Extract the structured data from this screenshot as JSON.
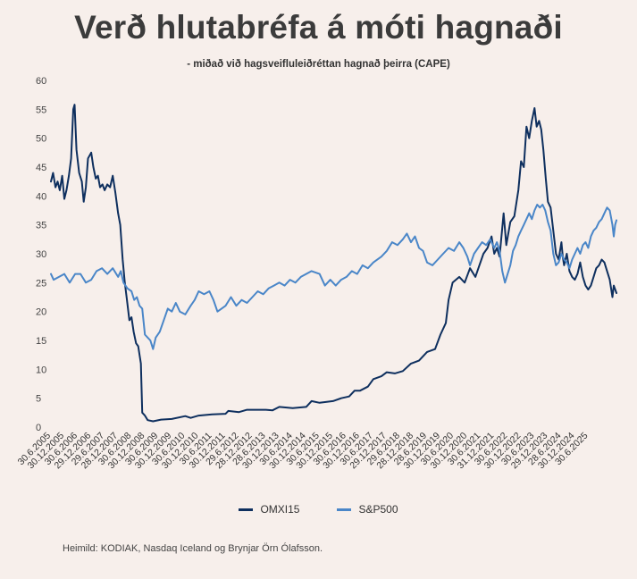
{
  "header": {
    "title": "Verð hlutabréfa á móti hagnaði",
    "subtitle": "- miðað við hagsveifluleiðréttan hagnað þeirra (CAPE)"
  },
  "source": "Heimild: KODIAK, Nasdaq Iceland og Brynjar Örn Ólafsson.",
  "chart_data": {
    "type": "line",
    "title": "Verð hlutabréfa á móti hagnaði",
    "subtitle": "- miðað við hagsveifluleiðréttan hagnað þeirra (CAPE)",
    "xlabel": "",
    "ylabel": "",
    "ylim": [
      0,
      60
    ],
    "yticks": [
      0,
      5,
      10,
      15,
      20,
      25,
      30,
      35,
      40,
      45,
      50,
      55,
      60
    ],
    "grid": false,
    "legend_position": "bottom",
    "xtick_labels": [
      "30.6.2005",
      "30.12.2005",
      "30.6.2006",
      "29.12.2006",
      "29.6.2007",
      "28.12.2007",
      "30.6.2008",
      "30.12.2008",
      "30.6.2009",
      "30.12.2009",
      "30.6.2010",
      "30.12.2010",
      "30.6.2011",
      "30.12.2011",
      "29.6.2012",
      "28.12.2012",
      "28.6.2013",
      "30.12.2013",
      "30.6.2014",
      "30.12.2014",
      "30.6.2015",
      "30.12.2015",
      "30.6.2016",
      "30.12.2016",
      "30.6.2017",
      "29.12.2017",
      "29.6.2018",
      "28.12.2018",
      "28.6.2019",
      "30.12.2019",
      "30.6.2020",
      "30.12.2020",
      "30.6.2021",
      "31.12.2021",
      "30.6.2022",
      "30.12.2022",
      "30.6.2023",
      "29.12.2023",
      "28.6.2024",
      "30.12.2024",
      "30.6.2025"
    ],
    "series": [
      {
        "name": "OMXI15",
        "color": "#0e2f5e",
        "points": [
          [
            2005.5,
            42.5
          ],
          [
            2005.58,
            44
          ],
          [
            2005.67,
            41.5
          ],
          [
            2005.75,
            42.5
          ],
          [
            2005.83,
            41
          ],
          [
            2005.92,
            43.5
          ],
          [
            2006.0,
            39.5
          ],
          [
            2006.08,
            41
          ],
          [
            2006.17,
            43.5
          ],
          [
            2006.25,
            46.5
          ],
          [
            2006.33,
            55
          ],
          [
            2006.38,
            55.8
          ],
          [
            2006.45,
            48
          ],
          [
            2006.55,
            44
          ],
          [
            2006.65,
            42.5
          ],
          [
            2006.72,
            39
          ],
          [
            2006.8,
            41.5
          ],
          [
            2006.88,
            46.5
          ],
          [
            2007.0,
            47.5
          ],
          [
            2007.08,
            45
          ],
          [
            2007.17,
            43
          ],
          [
            2007.25,
            43.5
          ],
          [
            2007.33,
            41.5
          ],
          [
            2007.42,
            42
          ],
          [
            2007.5,
            41
          ],
          [
            2007.6,
            42
          ],
          [
            2007.7,
            41.5
          ],
          [
            2007.8,
            43.5
          ],
          [
            2007.9,
            40.5
          ],
          [
            2008.0,
            37
          ],
          [
            2008.08,
            35
          ],
          [
            2008.17,
            29
          ],
          [
            2008.25,
            25
          ],
          [
            2008.33,
            22
          ],
          [
            2008.42,
            18.5
          ],
          [
            2008.5,
            19
          ],
          [
            2008.58,
            16.5
          ],
          [
            2008.67,
            14.5
          ],
          [
            2008.75,
            14
          ],
          [
            2008.85,
            11
          ],
          [
            2008.9,
            2.5
          ],
          [
            2009.0,
            2.0
          ],
          [
            2009.1,
            1.2
          ],
          [
            2009.3,
            1.0
          ],
          [
            2009.6,
            1.3
          ],
          [
            2010.0,
            1.4
          ],
          [
            2010.5,
            1.9
          ],
          [
            2010.7,
            1.6
          ],
          [
            2011.0,
            2.0
          ],
          [
            2011.5,
            2.2
          ],
          [
            2012.0,
            2.3
          ],
          [
            2012.1,
            2.8
          ],
          [
            2012.5,
            2.6
          ],
          [
            2012.8,
            3.0
          ],
          [
            2013.5,
            3.0
          ],
          [
            2013.75,
            2.9
          ],
          [
            2014.0,
            3.5
          ],
          [
            2014.5,
            3.3
          ],
          [
            2015.0,
            3.5
          ],
          [
            2015.2,
            4.5
          ],
          [
            2015.5,
            4.2
          ],
          [
            2016.0,
            4.5
          ],
          [
            2016.3,
            5.0
          ],
          [
            2016.6,
            5.3
          ],
          [
            2016.8,
            6.3
          ],
          [
            2017.0,
            6.3
          ],
          [
            2017.3,
            7.0
          ],
          [
            2017.5,
            8.3
          ],
          [
            2017.8,
            8.8
          ],
          [
            2018.0,
            9.5
          ],
          [
            2018.3,
            9.3
          ],
          [
            2018.6,
            9.7
          ],
          [
            2018.9,
            11.0
          ],
          [
            2019.2,
            11.5
          ],
          [
            2019.5,
            13
          ],
          [
            2019.8,
            13.5
          ],
          [
            2020.0,
            16
          ],
          [
            2020.2,
            18
          ],
          [
            2020.3,
            22
          ],
          [
            2020.45,
            25
          ],
          [
            2020.7,
            26
          ],
          [
            2020.9,
            25
          ],
          [
            2021.1,
            27.5
          ],
          [
            2021.3,
            26
          ],
          [
            2021.45,
            28
          ],
          [
            2021.6,
            30
          ],
          [
            2021.75,
            31
          ],
          [
            2021.9,
            33
          ],
          [
            2022.0,
            30
          ],
          [
            2022.1,
            31
          ],
          [
            2022.2,
            29.5
          ],
          [
            2022.35,
            37
          ],
          [
            2022.45,
            31.5
          ],
          [
            2022.6,
            35.5
          ],
          [
            2022.75,
            36.5
          ],
          [
            2022.9,
            41
          ],
          [
            2023.0,
            46
          ],
          [
            2023.1,
            45
          ],
          [
            2023.2,
            52
          ],
          [
            2023.3,
            50
          ],
          [
            2023.4,
            53
          ],
          [
            2023.5,
            55.2
          ],
          [
            2023.58,
            52
          ],
          [
            2023.67,
            53
          ],
          [
            2023.75,
            51.5
          ],
          [
            2023.83,
            48
          ],
          [
            2023.92,
            43
          ],
          [
            2024.0,
            39
          ],
          [
            2024.1,
            38
          ],
          [
            2024.2,
            34
          ],
          [
            2024.3,
            30
          ],
          [
            2024.4,
            29
          ],
          [
            2024.5,
            32
          ],
          [
            2024.55,
            29.5
          ],
          [
            2024.6,
            28
          ],
          [
            2024.7,
            30
          ],
          [
            2024.8,
            27
          ],
          [
            2024.9,
            26
          ],
          [
            2025.0,
            25.5
          ],
          [
            2025.1,
            26.5
          ],
          [
            2025.2,
            28.5
          ],
          [
            2025.3,
            26
          ],
          [
            2025.4,
            24.5
          ],
          [
            2025.5,
            23.8
          ],
          [
            2025.6,
            24.5
          ],
          [
            2025.7,
            26
          ],
          [
            2025.8,
            27.5
          ],
          [
            2025.9,
            28
          ],
          [
            2026.0,
            29
          ],
          [
            2026.1,
            28.5
          ],
          [
            2026.2,
            27
          ],
          [
            2026.3,
            25.5
          ],
          [
            2026.4,
            22.5
          ],
          [
            2026.45,
            24.5
          ],
          [
            2026.55,
            23.2
          ]
        ]
      },
      {
        "name": "S&P500",
        "color": "#4a86c8",
        "points": [
          [
            2005.5,
            26.5
          ],
          [
            2005.6,
            25.5
          ],
          [
            2005.8,
            26
          ],
          [
            2006.0,
            26.5
          ],
          [
            2006.2,
            25
          ],
          [
            2006.4,
            26.5
          ],
          [
            2006.6,
            26.5
          ],
          [
            2006.8,
            25
          ],
          [
            2007.0,
            25.5
          ],
          [
            2007.2,
            27
          ],
          [
            2007.4,
            27.5
          ],
          [
            2007.6,
            26.5
          ],
          [
            2007.8,
            27.5
          ],
          [
            2008.0,
            26
          ],
          [
            2008.1,
            27
          ],
          [
            2008.2,
            25
          ],
          [
            2008.35,
            24
          ],
          [
            2008.5,
            23.5
          ],
          [
            2008.6,
            22
          ],
          [
            2008.7,
            22.5
          ],
          [
            2008.8,
            21
          ],
          [
            2008.9,
            20.5
          ],
          [
            2009.0,
            16
          ],
          [
            2009.1,
            15.5
          ],
          [
            2009.2,
            15
          ],
          [
            2009.3,
            13.5
          ],
          [
            2009.4,
            15.5
          ],
          [
            2009.55,
            16.5
          ],
          [
            2009.7,
            18.5
          ],
          [
            2009.85,
            20.5
          ],
          [
            2010.0,
            20
          ],
          [
            2010.15,
            21.5
          ],
          [
            2010.3,
            20
          ],
          [
            2010.5,
            19.5
          ],
          [
            2010.7,
            21
          ],
          [
            2010.85,
            22
          ],
          [
            2011.0,
            23.5
          ],
          [
            2011.2,
            23
          ],
          [
            2011.4,
            23.5
          ],
          [
            2011.55,
            22
          ],
          [
            2011.7,
            20
          ],
          [
            2011.85,
            20.5
          ],
          [
            2012.0,
            21
          ],
          [
            2012.2,
            22.5
          ],
          [
            2012.4,
            21
          ],
          [
            2012.6,
            22
          ],
          [
            2012.8,
            21.5
          ],
          [
            2013.0,
            22.5
          ],
          [
            2013.2,
            23.5
          ],
          [
            2013.4,
            23
          ],
          [
            2013.6,
            24
          ],
          [
            2013.8,
            24.5
          ],
          [
            2014.0,
            25
          ],
          [
            2014.2,
            24.5
          ],
          [
            2014.4,
            25.5
          ],
          [
            2014.6,
            25
          ],
          [
            2014.8,
            26
          ],
          [
            2015.0,
            26.5
          ],
          [
            2015.2,
            27
          ],
          [
            2015.5,
            26.5
          ],
          [
            2015.7,
            24.5
          ],
          [
            2015.9,
            25.5
          ],
          [
            2016.1,
            24.5
          ],
          [
            2016.3,
            25.5
          ],
          [
            2016.5,
            26
          ],
          [
            2016.7,
            27
          ],
          [
            2016.9,
            26.5
          ],
          [
            2017.1,
            28
          ],
          [
            2017.3,
            27.5
          ],
          [
            2017.5,
            28.5
          ],
          [
            2017.8,
            29.5
          ],
          [
            2018.0,
            30.5
          ],
          [
            2018.2,
            32
          ],
          [
            2018.4,
            31.5
          ],
          [
            2018.6,
            32.5
          ],
          [
            2018.75,
            33.5
          ],
          [
            2018.9,
            32
          ],
          [
            2019.05,
            33
          ],
          [
            2019.2,
            31
          ],
          [
            2019.35,
            30.5
          ],
          [
            2019.5,
            28.5
          ],
          [
            2019.7,
            28
          ],
          [
            2019.9,
            29
          ],
          [
            2020.1,
            30
          ],
          [
            2020.3,
            31
          ],
          [
            2020.5,
            30.5
          ],
          [
            2020.7,
            32
          ],
          [
            2020.85,
            31
          ],
          [
            2021.0,
            29.5
          ],
          [
            2021.1,
            28
          ],
          [
            2021.25,
            30
          ],
          [
            2021.4,
            31
          ],
          [
            2021.55,
            32
          ],
          [
            2021.7,
            31.5
          ],
          [
            2021.85,
            32.5
          ],
          [
            2022.0,
            31
          ],
          [
            2022.1,
            32
          ],
          [
            2022.2,
            30.5
          ],
          [
            2022.3,
            27
          ],
          [
            2022.4,
            25
          ],
          [
            2022.5,
            26.5
          ],
          [
            2022.6,
            28
          ],
          [
            2022.7,
            30.5
          ],
          [
            2022.8,
            31.5
          ],
          [
            2022.9,
            33
          ],
          [
            2023.0,
            34
          ],
          [
            2023.1,
            35
          ],
          [
            2023.2,
            36
          ],
          [
            2023.3,
            37
          ],
          [
            2023.4,
            36
          ],
          [
            2023.5,
            37.5
          ],
          [
            2023.6,
            38.5
          ],
          [
            2023.7,
            38
          ],
          [
            2023.8,
            38.5
          ],
          [
            2023.9,
            37.5
          ],
          [
            2024.0,
            35.5
          ],
          [
            2024.1,
            34
          ],
          [
            2024.2,
            30
          ],
          [
            2024.3,
            28
          ],
          [
            2024.4,
            28.5
          ],
          [
            2024.5,
            30
          ],
          [
            2024.6,
            29
          ],
          [
            2024.7,
            28.5
          ],
          [
            2024.8,
            27.5
          ],
          [
            2024.9,
            29
          ],
          [
            2025.0,
            30
          ],
          [
            2025.1,
            31
          ],
          [
            2025.2,
            30
          ],
          [
            2025.3,
            31.5
          ],
          [
            2025.4,
            32
          ],
          [
            2025.5,
            31
          ],
          [
            2025.6,
            33
          ],
          [
            2025.7,
            34
          ],
          [
            2025.8,
            34.5
          ],
          [
            2025.9,
            35.5
          ],
          [
            2026.0,
            36
          ],
          [
            2026.1,
            37
          ],
          [
            2026.2,
            38
          ],
          [
            2026.3,
            37.5
          ],
          [
            2026.4,
            35
          ],
          [
            2026.45,
            33
          ],
          [
            2026.5,
            35
          ],
          [
            2026.55,
            35.8
          ]
        ]
      }
    ]
  }
}
